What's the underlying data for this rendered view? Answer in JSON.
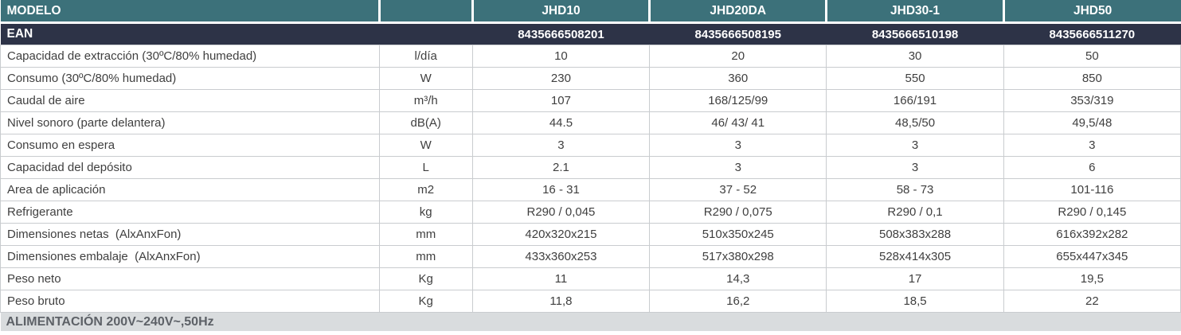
{
  "table": {
    "header": {
      "label": "MODELO",
      "unit_spacer": "",
      "models": [
        "JHD10",
        "JHD20DA",
        "JHD30-1",
        "JHD50"
      ]
    },
    "ean": {
      "label": "EAN",
      "unit_spacer": "",
      "values": [
        "8435666508201",
        "8435666508195",
        "8435666510198",
        "8435666511270"
      ]
    },
    "rows": [
      {
        "label": "Capacidad de extracción (30ºC/80% humedad)",
        "unit": "l/día",
        "values": [
          "10",
          "20",
          "30",
          "50"
        ]
      },
      {
        "label": "Consumo (30ºC/80% humedad)",
        "unit": "W",
        "values": [
          "230",
          "360",
          "550",
          "850"
        ]
      },
      {
        "label": "Caudal de aire",
        "unit": "m³/h",
        "values": [
          "107",
          "168/125/99",
          "166/191",
          "353/319"
        ]
      },
      {
        "label": "Nivel sonoro (parte delantera)",
        "unit": "dB(A)",
        "values": [
          "44.5",
          "46/ 43/ 41",
          "48,5/50",
          "49,5/48"
        ]
      },
      {
        "label": "Consumo en espera",
        "unit": "W",
        "values": [
          "3",
          "3",
          "3",
          "3"
        ]
      },
      {
        "label": "Capacidad del depósito",
        "unit": "L",
        "values": [
          "2.1",
          "3",
          "3",
          "6"
        ]
      },
      {
        "label": "Area de aplicación",
        "unit": "m2",
        "values": [
          "16 - 31",
          "37 - 52",
          "58 - 73",
          "101-116"
        ]
      },
      {
        "label": "Refrigerante",
        "unit": "kg",
        "values": [
          "R290 / 0,045",
          "R290 / 0,075",
          "R290 / 0,1",
          "R290 / 0,145"
        ]
      },
      {
        "label": "Dimensiones netas  (AlxAnxFon)",
        "unit": "mm",
        "values": [
          "420x320x215",
          "510x350x245",
          "508x383x288",
          "616x392x282"
        ]
      },
      {
        "label": "Dimensiones embalaje  (AlxAnxFon)",
        "unit": "mm",
        "values": [
          "433x360x253",
          "517x380x298",
          "528x414x305",
          "655x447x345"
        ]
      },
      {
        "label": "Peso neto",
        "unit": "Kg",
        "values": [
          "11",
          "14,3",
          "17",
          "19,5"
        ]
      },
      {
        "label": "Peso bruto",
        "unit": "Kg",
        "values": [
          "11,8",
          "16,2",
          "18,5",
          "22"
        ]
      }
    ],
    "footer": "ALIMENTACIÓN 200V~240V~,50Hz"
  },
  "colors": {
    "header_bg": "#3c717a",
    "ean_bg": "#2d3347",
    "footer_bg": "#d9dcde",
    "footer_text": "#5d6167",
    "grid_border": "#c9cccf",
    "body_text": "#3f3f3f",
    "header_text": "#ffffff"
  }
}
